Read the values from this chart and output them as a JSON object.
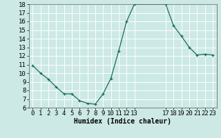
{
  "x": [
    0,
    1,
    2,
    3,
    4,
    5,
    6,
    7,
    8,
    9,
    10,
    11,
    12,
    13,
    17,
    18,
    19,
    20,
    21,
    22,
    23
  ],
  "y": [
    10.9,
    10.0,
    9.3,
    8.4,
    7.6,
    7.6,
    6.8,
    6.5,
    6.4,
    7.6,
    9.4,
    12.6,
    16.0,
    18.0,
    18.0,
    15.5,
    14.3,
    13.0,
    12.1,
    12.2,
    12.1
  ],
  "line_color": "#1a6b5e",
  "bg_color": "#cce9e5",
  "grid_color": "#ffffff",
  "xlabel": "Humidex (Indice chaleur)",
  "ylim": [
    6,
    18
  ],
  "xlim": [
    -0.5,
    23.5
  ],
  "yticks": [
    6,
    7,
    8,
    9,
    10,
    11,
    12,
    13,
    14,
    15,
    16,
    17,
    18
  ],
  "xticks": [
    0,
    1,
    2,
    3,
    4,
    5,
    6,
    7,
    8,
    9,
    10,
    11,
    12,
    13,
    17,
    18,
    19,
    20,
    21,
    22,
    23
  ],
  "xlabel_fontsize": 7,
  "tick_fontsize": 6.5
}
